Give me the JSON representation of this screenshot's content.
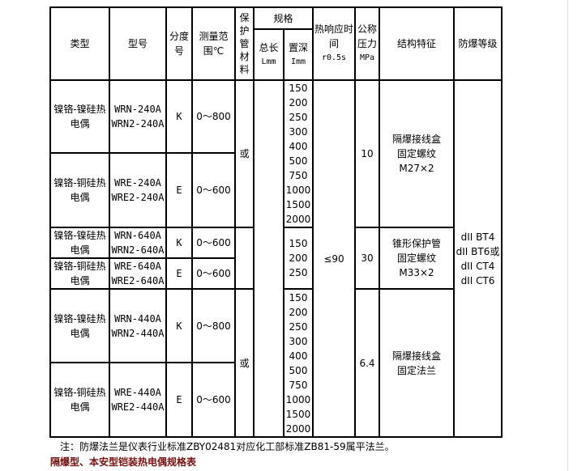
{
  "header": {
    "type": "类型",
    "model": "型号",
    "graduation": "分度号",
    "range": "测量范围℃",
    "tube_material": "保护管材料",
    "spec": "规格",
    "total_length": "总长",
    "total_length_unit": "Lmm",
    "insert_depth": "置深",
    "insert_depth_unit": "Imm",
    "response": "热响应时间",
    "response_unit": "r0.5s",
    "pressure": "公称压力",
    "pressure_unit": "MPa",
    "structure": "结构特征",
    "explosion_grade": "防爆等级"
  },
  "rows": [
    {
      "type": "镍铬-镍硅热电偶",
      "models": [
        "WRN-240A",
        "WRN2-240A"
      ],
      "graduation": "K",
      "range": "0～800"
    },
    {
      "type": "镍铬-铜硅热电偶",
      "models": [
        "WRE-240A",
        "WRE2-240A"
      ],
      "graduation": "E",
      "range": "0～600"
    },
    {
      "type": "镍铬-镍硅热电偶",
      "models": [
        "WRN-640A",
        "WRN2-640A"
      ],
      "graduation": "K",
      "range": "0～600"
    },
    {
      "type": "镍铬-铜硅热电偶",
      "models": [
        "WRE-640A",
        "WRE2-640A"
      ],
      "graduation": "E",
      "range": "0～600"
    },
    {
      "type": "镍铬-镍硅热电偶",
      "models": [
        "WRN-440A",
        "WRN2-440A"
      ],
      "graduation": "K",
      "range": "0～800"
    },
    {
      "type": "镍铬-铜硅热电偶",
      "models": [
        "WRE-440A",
        "WRE2-440A"
      ],
      "graduation": "E",
      "range": "0～600"
    }
  ],
  "groups": [
    {
      "material": "或",
      "depths": [
        "150",
        "200",
        "250",
        "300",
        "400",
        "500",
        "750",
        "1000",
        "1500",
        "2000"
      ],
      "pressure": "10",
      "structure": [
        "隔爆接线盒",
        "固定螺纹M27×2"
      ]
    },
    {
      "material": "",
      "depths": [
        "150",
        "200",
        "250"
      ],
      "pressure": "30",
      "structure": [
        "锥形保护管",
        "固定螺纹M33×2"
      ]
    },
    {
      "material": "或",
      "depths": [
        "150",
        "200",
        "250",
        "300",
        "400",
        "500",
        "750",
        "1000",
        "1500",
        "2000"
      ],
      "pressure": "6.4",
      "structure": [
        "隔爆接线盒",
        "固定法兰"
      ]
    }
  ],
  "response_value": "≤90",
  "explosion_grades": [
    "dII BT4",
    "dII BT6或",
    "dII CT4",
    "dII CT6"
  ],
  "note": "注：防爆法兰是仪表行业标准ZBY02481对应化工部标准ZB81-59属平法兰。",
  "caption": "隔爆型、本安型铠装热电偶规格表",
  "colors": {
    "caption": "#7a1010",
    "border": "#000000"
  }
}
